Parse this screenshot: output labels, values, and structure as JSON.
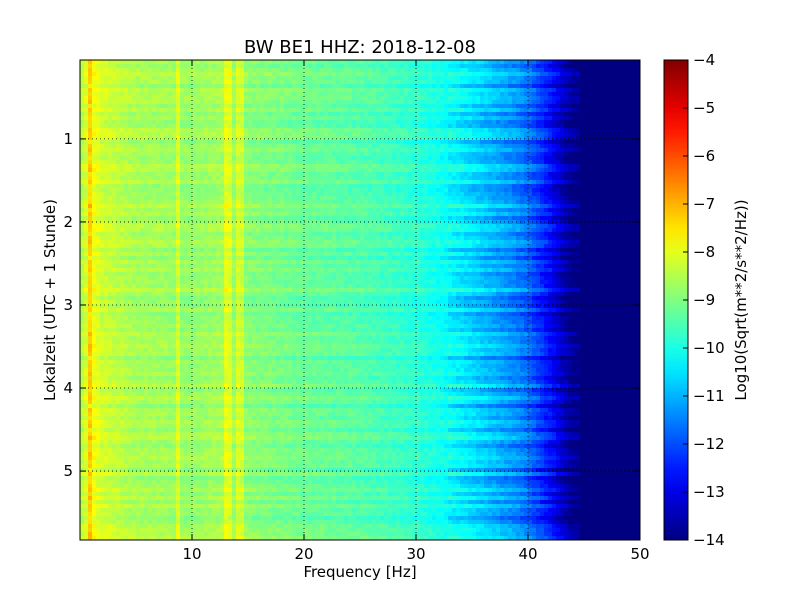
{
  "chart_data": {
    "type": "heatmap",
    "title": "BW BE1 HHZ: 2018-12-08",
    "xlabel": "Frequency [Hz]",
    "ylabel": "Lokalzeit (UTC + 1 Stunde)",
    "xlim": [
      0,
      50
    ],
    "ylim": [
      5.83,
      0.05
    ],
    "x_ticks": [
      10,
      20,
      30,
      40,
      50
    ],
    "y_ticks": [
      1,
      2,
      3,
      4,
      5
    ],
    "grid": true,
    "colormap": "jet",
    "colorbar": {
      "label": "Log10(Sqrt(m**2/s**2/Hz))",
      "range": [
        -14,
        -4
      ],
      "ticks": [
        -4,
        -5,
        -6,
        -7,
        -8,
        -9,
        -10,
        -11,
        -12,
        -13,
        -14
      ]
    },
    "spectrum_profile": {
      "frequency_hz": [
        0,
        0.5,
        1,
        2,
        5,
        8,
        10,
        13,
        15,
        20,
        25,
        30,
        33,
        35,
        37,
        39,
        40,
        41,
        42,
        43,
        44,
        45,
        50
      ],
      "level": [
        -8.6,
        -8.2,
        -7.8,
        -8.2,
        -8.6,
        -8.7,
        -8.8,
        -8.6,
        -8.9,
        -9.2,
        -9.4,
        -9.8,
        -10.2,
        -10.6,
        -11.0,
        -11.4,
        -11.7,
        -12.2,
        -12.7,
        -13.3,
        -13.9,
        -14,
        -14
      ]
    },
    "bright_lines_hz": [
      1.0,
      8.7,
      13.2,
      14.3
    ]
  },
  "colors": {
    "background": "#ffffff",
    "frame": "#000000",
    "grid": "#000000"
  }
}
